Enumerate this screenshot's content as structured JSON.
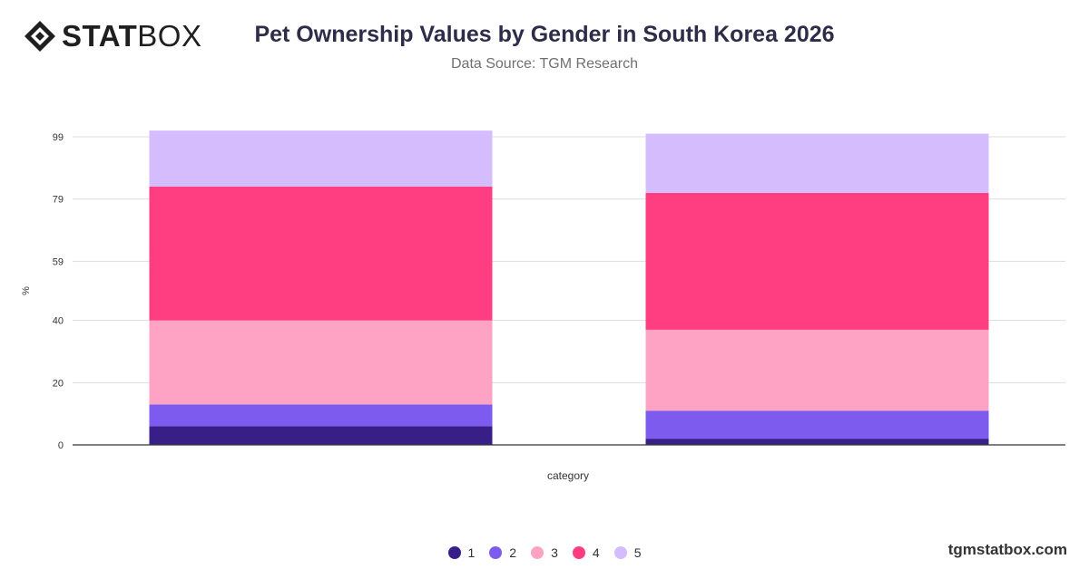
{
  "brand": {
    "logo_bold": "STAT",
    "logo_light": "BOX",
    "footer": "tgmstatbox.com"
  },
  "header": {
    "title": "Pet Ownership Values by Gender in South Korea 2026",
    "subtitle": "Data Source: TGM Research"
  },
  "chart_data": {
    "type": "bar",
    "stacked": true,
    "title": "Pet Ownership Values by Gender in South Korea 2026",
    "subtitle": "Data Source: TGM Research",
    "xlabel": "category",
    "ylabel": "%",
    "yticks": [
      0,
      20,
      40,
      59,
      79,
      99
    ],
    "ylim": [
      0,
      99
    ],
    "grid": true,
    "legend_position": "bottom",
    "categories": [
      "",
      ""
    ],
    "series": [
      {
        "name": "1",
        "color": "#371F87",
        "values": [
          6,
          2
        ]
      },
      {
        "name": "2",
        "color": "#7E5BEF",
        "values": [
          7,
          9
        ]
      },
      {
        "name": "3",
        "color": "#FFA3C4",
        "values": [
          27,
          26
        ]
      },
      {
        "name": "4",
        "color": "#FF3D80",
        "values": [
          43,
          44
        ]
      },
      {
        "name": "5",
        "color": "#D5BCFC",
        "values": [
          18,
          19
        ]
      }
    ]
  }
}
